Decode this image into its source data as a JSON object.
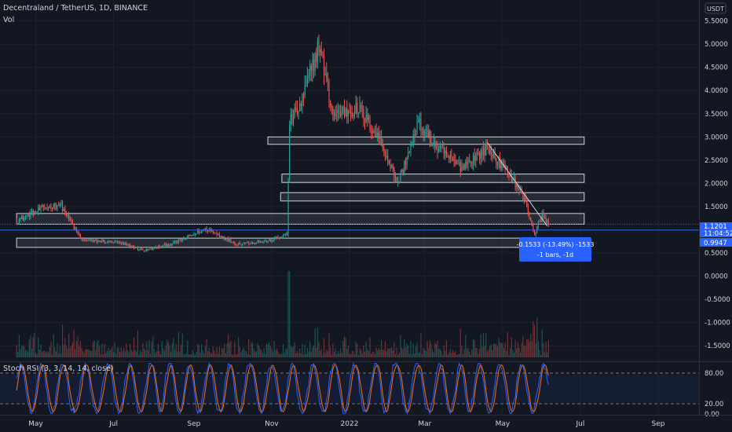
{
  "header": {
    "symbol_title": "Decentraland / TetherUS, 1D, BINANCE",
    "volume_label": "Vol",
    "currency": "USDT"
  },
  "price_badges": {
    "last_price": "1.1201",
    "countdown": "11:04:52",
    "measure_price": "0.9947"
  },
  "measure_tooltip": {
    "line1": "-0.1533 (-13.49%) -1533",
    "line2": "-1 bars, -1d"
  },
  "indicator": {
    "title": "Stoch RSI (3, 3, 14, 14, close)",
    "ticks": [
      "80.00",
      "20.00",
      "0.00"
    ],
    "tick_values": [
      80,
      20,
      0
    ]
  },
  "colors": {
    "background": "#131722",
    "up": "#26a69a",
    "down": "#ef5350",
    "k_line": "#2962ff",
    "d_line": "#ff6d00",
    "zone": "#d1d4dc",
    "badge_blue": "#2962ff"
  },
  "chart_data": {
    "type": "candlestick",
    "title": "Decentraland / TetherUS, 1D, BINANCE",
    "y_unit": "USDT",
    "y_range": [
      -1.75,
      5.95
    ],
    "y_ticks": [
      5.5,
      5.0,
      4.5,
      4.0,
      3.5,
      3.0,
      2.5,
      2.0,
      1.5,
      1.0,
      0.5,
      0.0,
      -0.5,
      -1.0,
      -1.5
    ],
    "y_tick_labels": [
      "5.5000",
      "5.0000",
      "4.5000",
      "4.0000",
      "3.5000",
      "3.0000",
      "2.5000",
      "2.0000",
      "1.5000",
      "1.0000",
      "0.5000",
      "0.0000",
      "-0.5000",
      "-1.0000",
      "-1.5000"
    ],
    "x_labels": [
      "May",
      "Jul",
      "Sep",
      "Nov",
      "2022",
      "Mar",
      "May",
      "Jul",
      "Sep"
    ],
    "x_label_days": [
      15,
      76,
      139,
      200,
      261,
      320,
      381,
      442,
      503
    ],
    "x_day_range": [
      -13,
      535
    ],
    "last_price": 1.1201,
    "key_points": [
      {
        "date": "2021-04-01",
        "price": 1.18
      },
      {
        "date": "2021-04-20",
        "price": 1.45
      },
      {
        "date": "2021-05-05",
        "price": 1.55
      },
      {
        "date": "2021-05-22",
        "price": 0.78
      },
      {
        "date": "2021-06-20",
        "price": 0.72
      },
      {
        "date": "2021-07-10",
        "price": 0.55
      },
      {
        "date": "2021-08-01",
        "price": 0.7
      },
      {
        "date": "2021-08-28",
        "price": 1.02
      },
      {
        "date": "2021-09-20",
        "price": 0.7
      },
      {
        "date": "2021-10-15",
        "price": 0.75
      },
      {
        "date": "2021-10-30",
        "price": 0.9
      },
      {
        "date": "2021-11-01",
        "price": 3.3
      },
      {
        "date": "2021-11-10",
        "price": 3.7
      },
      {
        "date": "2021-11-24",
        "price": 5.0
      },
      {
        "date": "2021-12-05",
        "price": 3.5
      },
      {
        "date": "2021-12-25",
        "price": 3.6
      },
      {
        "date": "2022-01-10",
        "price": 3.0
      },
      {
        "date": "2022-01-25",
        "price": 2.0
      },
      {
        "date": "2022-02-10",
        "price": 3.3
      },
      {
        "date": "2022-02-25",
        "price": 2.75
      },
      {
        "date": "2022-03-15",
        "price": 2.35
      },
      {
        "date": "2022-04-05",
        "price": 2.75
      },
      {
        "date": "2022-04-25",
        "price": 2.1
      },
      {
        "date": "2022-05-05",
        "price": 1.6
      },
      {
        "date": "2022-05-12",
        "price": 0.9
      },
      {
        "date": "2022-05-18",
        "price": 1.32
      },
      {
        "date": "2022-05-23",
        "price": 1.12
      }
    ],
    "zones": [
      {
        "low": 2.84,
        "high": 3.0,
        "from_date": "2021-10-15",
        "to_date": "2022-06-20"
      },
      {
        "low": 2.02,
        "high": 2.2,
        "from_date": "2021-10-26",
        "to_date": "2022-06-20"
      },
      {
        "low": 1.62,
        "high": 1.8,
        "from_date": "2021-10-25",
        "to_date": "2022-06-20"
      },
      {
        "low": 1.12,
        "high": 1.35,
        "from_date": "2021-04-01",
        "to_date": "2022-06-20"
      },
      {
        "low": 0.62,
        "high": 0.82,
        "from_date": "2021-04-01",
        "to_date": "2022-06-20"
      }
    ],
    "trendline": [
      {
        "date": "2022-04-05",
        "price": 2.88
      },
      {
        "date": "2022-05-22",
        "price": 1.08
      }
    ],
    "stoch_rsi": {
      "range": [
        0,
        100
      ],
      "upper_band": 80,
      "lower_band": 20
    }
  }
}
